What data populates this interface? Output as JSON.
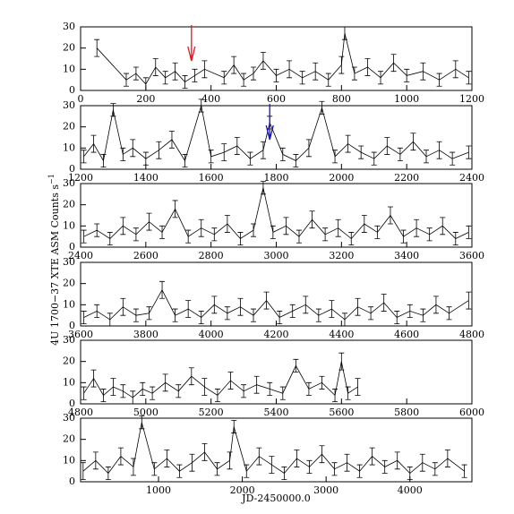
{
  "chart_data": [
    {
      "type": "line",
      "xlim": [
        0,
        1200
      ],
      "xticks": [
        0,
        200,
        400,
        600,
        800,
        1000,
        1200
      ],
      "ylim": [
        0,
        30
      ],
      "yticks": [
        0,
        10,
        20,
        30
      ],
      "x": [
        50,
        140,
        170,
        200,
        230,
        260,
        290,
        320,
        350,
        380,
        440,
        470,
        500,
        530,
        560,
        600,
        640,
        680,
        720,
        760,
        800,
        810,
        840,
        880,
        920,
        960,
        1000,
        1050,
        1100,
        1150,
        1190
      ],
      "values": [
        20,
        5,
        8,
        3,
        11,
        6,
        9,
        4,
        7,
        10,
        6,
        12,
        5,
        8,
        14,
        7,
        10,
        6,
        9,
        5,
        12,
        27,
        8,
        11,
        6,
        13,
        7,
        9,
        5,
        10,
        6
      ],
      "errors": [
        4,
        3,
        3,
        3,
        4,
        3,
        4,
        3,
        3,
        4,
        3,
        4,
        3,
        3,
        4,
        3,
        4,
        3,
        4,
        3,
        4,
        3,
        3,
        4,
        3,
        4,
        3,
        4,
        3,
        4,
        3
      ],
      "arrows": [
        {
          "x": 340,
          "color": "#e8141e"
        }
      ]
    },
    {
      "type": "line",
      "xlim": [
        1200,
        2400
      ],
      "xticks": [
        1200,
        1400,
        1600,
        1800,
        2000,
        2200,
        2400
      ],
      "ylim": [
        0,
        30
      ],
      "yticks": [
        0,
        10,
        20,
        30
      ],
      "x": [
        1210,
        1240,
        1270,
        1300,
        1330,
        1360,
        1400,
        1440,
        1480,
        1520,
        1570,
        1600,
        1640,
        1680,
        1720,
        1760,
        1780,
        1820,
        1860,
        1900,
        1940,
        1980,
        2020,
        2060,
        2100,
        2140,
        2180,
        2220,
        2260,
        2300,
        2340,
        2390
      ],
      "values": [
        6,
        12,
        4,
        28,
        7,
        10,
        5,
        9,
        14,
        4,
        30,
        6,
        8,
        11,
        5,
        9,
        22,
        7,
        4,
        10,
        29,
        6,
        12,
        8,
        5,
        11,
        7,
        13,
        6,
        9,
        5,
        8
      ],
      "errors": [
        3,
        4,
        3,
        3,
        3,
        4,
        3,
        4,
        4,
        3,
        3,
        3,
        4,
        4,
        3,
        4,
        3,
        3,
        3,
        4,
        3,
        3,
        4,
        3,
        3,
        4,
        3,
        4,
        3,
        4,
        3,
        3
      ],
      "arrows": [
        {
          "x": 1780,
          "color": "#1414c8"
        }
      ]
    },
    {
      "type": "line",
      "xlim": [
        2400,
        3600
      ],
      "xticks": [
        2400,
        2600,
        2800,
        3000,
        3200,
        3400,
        3600
      ],
      "ylim": [
        0,
        30
      ],
      "yticks": [
        0,
        10,
        20,
        30
      ],
      "ylabel": "4U 1700−37 XTE ASM Counts s",
      "ylabel_exp": "−1",
      "x": [
        2410,
        2450,
        2490,
        2530,
        2570,
        2610,
        2650,
        2690,
        2730,
        2770,
        2810,
        2850,
        2890,
        2930,
        2960,
        2990,
        3030,
        3070,
        3110,
        3150,
        3190,
        3230,
        3270,
        3310,
        3350,
        3390,
        3430,
        3470,
        3510,
        3550,
        3590
      ],
      "values": [
        5,
        8,
        4,
        10,
        6,
        12,
        7,
        18,
        5,
        9,
        6,
        11,
        4,
        8,
        28,
        7,
        10,
        5,
        13,
        6,
        9,
        4,
        11,
        7,
        15,
        5,
        9,
        6,
        10,
        4,
        7
      ],
      "errors": [
        3,
        3,
        3,
        4,
        3,
        4,
        3,
        4,
        3,
        4,
        3,
        4,
        3,
        3,
        3,
        3,
        4,
        3,
        4,
        3,
        4,
        3,
        4,
        3,
        4,
        3,
        4,
        3,
        4,
        3,
        3
      ]
    },
    {
      "type": "line",
      "xlim": [
        3600,
        4800
      ],
      "xticks": [
        3600,
        3800,
        4000,
        4200,
        4400,
        4600,
        4800
      ],
      "ylim": [
        0,
        30
      ],
      "yticks": [
        0,
        10,
        20,
        30
      ],
      "x": [
        3610,
        3650,
        3690,
        3730,
        3770,
        3810,
        3850,
        3890,
        3930,
        3970,
        4010,
        4050,
        4090,
        4130,
        4170,
        4210,
        4250,
        4290,
        4330,
        4370,
        4410,
        4450,
        4490,
        4530,
        4570,
        4610,
        4650,
        4690,
        4730,
        4790
      ],
      "values": [
        4,
        7,
        3,
        9,
        5,
        6,
        17,
        5,
        8,
        4,
        10,
        6,
        9,
        5,
        12,
        4,
        7,
        10,
        5,
        8,
        3,
        9,
        6,
        11,
        4,
        7,
        5,
        10,
        6,
        12
      ],
      "errors": [
        3,
        3,
        3,
        4,
        3,
        3,
        4,
        3,
        4,
        3,
        4,
        3,
        4,
        3,
        4,
        3,
        3,
        4,
        3,
        4,
        3,
        4,
        3,
        4,
        3,
        3,
        3,
        4,
        3,
        4
      ]
    },
    {
      "type": "line",
      "xlim": [
        4800,
        6000
      ],
      "xticks": [
        4800,
        5000,
        5200,
        5400,
        5600,
        5800,
        6000
      ],
      "ylim": [
        0,
        30
      ],
      "yticks": [
        0,
        10,
        20,
        30
      ],
      "x": [
        4810,
        4840,
        4870,
        4900,
        4930,
        4960,
        4990,
        5020,
        5060,
        5100,
        5140,
        5180,
        5220,
        5260,
        5300,
        5340,
        5380,
        5420,
        5460,
        5500,
        5540,
        5580,
        5600,
        5620,
        5650
      ],
      "values": [
        5,
        12,
        4,
        8,
        6,
        3,
        7,
        5,
        10,
        6,
        13,
        8,
        4,
        11,
        6,
        9,
        7,
        5,
        18,
        7,
        10,
        4,
        20,
        5,
        8
      ],
      "errors": [
        3,
        4,
        3,
        4,
        3,
        3,
        3,
        3,
        4,
        3,
        4,
        4,
        3,
        4,
        3,
        4,
        3,
        3,
        3,
        3,
        3,
        3,
        4,
        3,
        4
      ]
    },
    {
      "type": "line",
      "xlim": [
        70,
        4740
      ],
      "xticks": [
        {
          "value": 1000,
          "label": "1000"
        },
        {
          "value": 2000,
          "label": "2000"
        },
        {
          "value": 3000,
          "label": "3000"
        },
        {
          "value": 4000,
          "label": "4000"
        }
      ],
      "ylim": [
        0,
        30
      ],
      "yticks": [
        0,
        10,
        20,
        30
      ],
      "xlabel": "JD-2450000.0",
      "x": [
        100,
        250,
        400,
        550,
        700,
        800,
        950,
        1100,
        1250,
        1400,
        1550,
        1700,
        1850,
        1900,
        2050,
        2200,
        2350,
        2500,
        2650,
        2800,
        2950,
        3100,
        3250,
        3400,
        3550,
        3700,
        3850,
        4000,
        4150,
        4300,
        4450,
        4650
      ],
      "values": [
        5,
        10,
        4,
        12,
        7,
        28,
        6,
        11,
        5,
        9,
        14,
        6,
        10,
        26,
        5,
        12,
        8,
        4,
        11,
        7,
        13,
        6,
        9,
        5,
        12,
        7,
        10,
        4,
        9,
        6,
        11,
        5
      ],
      "errors": [
        4,
        4,
        3,
        4,
        4,
        3,
        3,
        4,
        3,
        4,
        4,
        3,
        4,
        3,
        3,
        4,
        4,
        3,
        4,
        3,
        4,
        3,
        4,
        3,
        4,
        3,
        4,
        3,
        4,
        3,
        4,
        3
      ]
    }
  ]
}
